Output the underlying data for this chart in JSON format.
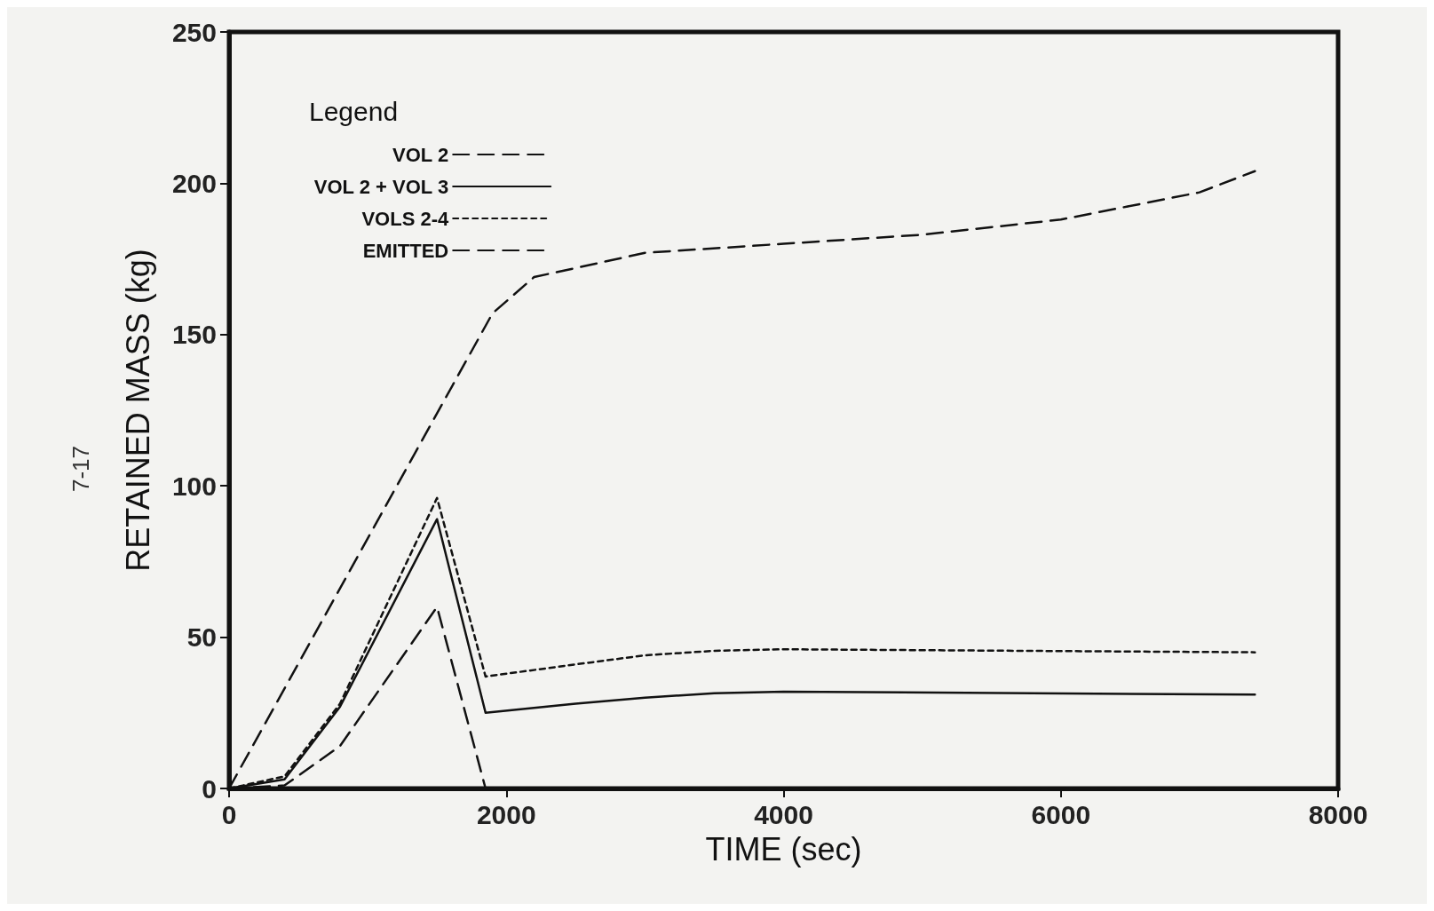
{
  "chart_data": {
    "type": "line",
    "xlabel": "TIME (sec)",
    "ylabel": "RETAINED MASS (kg)",
    "legend_title": "Legend",
    "legend": "top left",
    "grid": false,
    "marker": "none",
    "xlim": [
      0,
      8000
    ],
    "xticks": [
      0,
      2000,
      4000,
      6000,
      8000
    ],
    "ylim": [
      0,
      250
    ],
    "yticks": [
      0,
      50,
      100,
      150,
      200,
      250
    ],
    "annotations": [
      "7-17"
    ],
    "series": [
      {
        "name": "VOL 2",
        "color": "#111111",
        "line_style": "dashed",
        "x": [
          0,
          400,
          800,
          1500,
          1850,
          7400
        ],
        "values": [
          0,
          1,
          14,
          60,
          0,
          0
        ]
      },
      {
        "name": "VOL 2 + VOL 3",
        "color": "#111111",
        "line_style": "solid",
        "x": [
          0,
          400,
          800,
          1500,
          1850,
          2500,
          3000,
          3500,
          4000,
          7400
        ],
        "values": [
          0,
          3,
          27,
          89,
          25,
          28,
          30,
          31.5,
          32,
          31
        ]
      },
      {
        "name": "VOLS 2-4",
        "color": "#111111",
        "line_style": "dotted",
        "x": [
          0,
          200,
          400,
          800,
          1500,
          1850,
          2500,
          3000,
          3500,
          4000,
          7400
        ],
        "values": [
          0,
          2,
          4,
          28,
          96,
          37,
          41,
          44,
          45.5,
          46,
          45
        ]
      },
      {
        "name": "EMITTED",
        "color": "#111111",
        "line_style": "dashed",
        "x": [
          0,
          1900,
          2200,
          3000,
          4000,
          5000,
          6000,
          7000,
          7400
        ],
        "values": [
          0,
          157,
          169,
          177,
          180,
          183,
          188,
          197,
          204
        ]
      }
    ]
  }
}
